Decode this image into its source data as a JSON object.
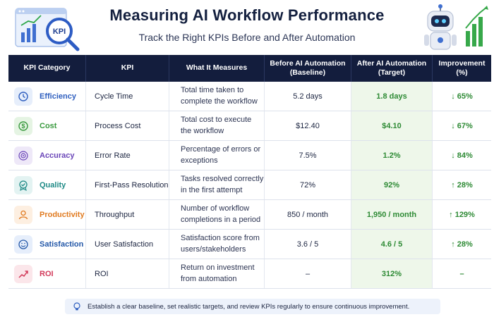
{
  "header": {
    "title": "Measuring AI Workflow Performance",
    "subtitle": "Track the Right KPIs Before and After Automation",
    "badge_text": "KPI"
  },
  "columns": [
    "KPI Category",
    "KPI",
    "What It Measures",
    "Before AI Automation\n(Baseline)",
    "After AI Automation\n(Target)",
    "Improvement\n(%)"
  ],
  "rows": [
    {
      "category": "Efficiency",
      "kpi": "Cycle Time",
      "measures": "Total time taken to complete the workflow",
      "before": "5.2 days",
      "after": "1.8 days",
      "improvement": "↓ 65%",
      "icon": "clock-icon",
      "color": "#2f5fbf",
      "bg": "#e6eefb"
    },
    {
      "category": "Cost",
      "kpi": "Process Cost",
      "measures": "Total cost to execute the workflow",
      "before": "$12.40",
      "after": "$4.10",
      "improvement": "↓ 67%",
      "icon": "dollar-icon",
      "color": "#3a9a3f",
      "bg": "#e5f4e3"
    },
    {
      "category": "Accuracy",
      "kpi": "Error Rate",
      "measures": "Percentage of errors or exceptions",
      "before": "7.5%",
      "after": "1.2%",
      "improvement": "↓ 84%",
      "icon": "target-icon",
      "color": "#6a45b8",
      "bg": "#eee8f8"
    },
    {
      "category": "Quality",
      "kpi": "First-Pass Resolution",
      "measures": "Tasks resolved correctly in the first attempt",
      "before": "72%",
      "after": "92%",
      "improvement": "↑ 28%",
      "icon": "quality-badge-icon",
      "color": "#1f8a86",
      "bg": "#e3f3f2"
    },
    {
      "category": "Productivity",
      "kpi": "Throughput",
      "measures": "Number of workflow completions in a period",
      "before": "850 / month",
      "after": "1,950 / month",
      "improvement": "↑ 129%",
      "icon": "person-icon",
      "color": "#e07a1f",
      "bg": "#fdefe1"
    },
    {
      "category": "Satisfaction",
      "kpi": "User Satisfaction",
      "measures": "Satisfaction score from users/stakeholders",
      "before": "3.6 / 5",
      "after": "4.6 / 5",
      "improvement": "↑ 28%",
      "icon": "smiley-icon",
      "color": "#2458a8",
      "bg": "#e6eefb"
    },
    {
      "category": "ROI",
      "kpi": "ROI",
      "measures": "Return on investment from automation",
      "before": "–",
      "after": "312%",
      "improvement": "–",
      "icon": "trend-up-icon",
      "color": "#d23a5a",
      "bg": "#fbe6ea"
    }
  ],
  "note": "Establish a clear baseline, set realistic targets, and review KPIs regularly to ensure continuous improvement."
}
